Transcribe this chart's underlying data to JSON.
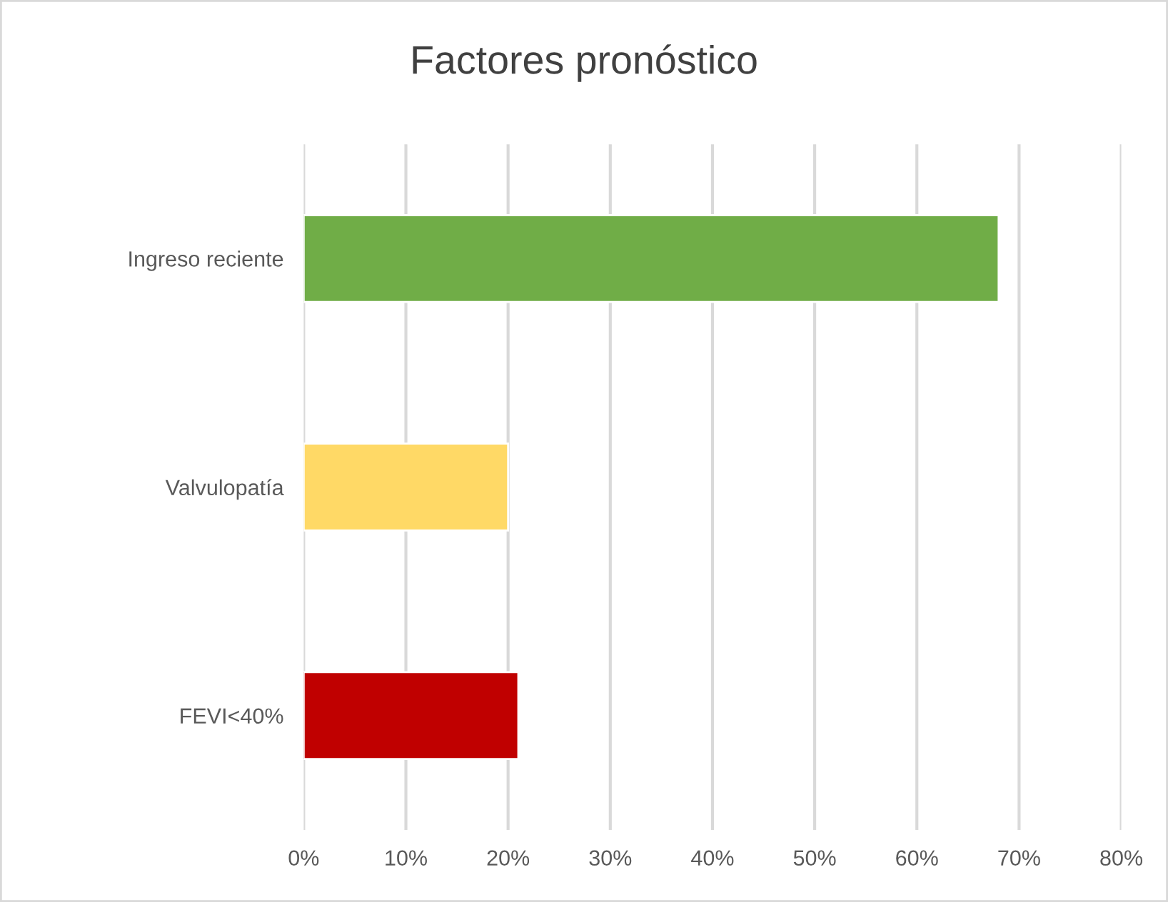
{
  "chart_data": {
    "type": "bar",
    "orientation": "horizontal",
    "title": "Factores pronóstico",
    "categories": [
      "Ingreso reciente",
      "Valvulopatía",
      "FEVI<40%"
    ],
    "values": [
      68,
      20,
      21
    ],
    "colors": [
      "#70ad47",
      "#ffd966",
      "#c00000"
    ],
    "xlim": [
      0,
      80
    ],
    "xticks": [
      {
        "value": 0,
        "label": "0%"
      },
      {
        "value": 10,
        "label": "10%"
      },
      {
        "value": 20,
        "label": "20%"
      },
      {
        "value": 30,
        "label": "30%"
      },
      {
        "value": 40,
        "label": "40%"
      },
      {
        "value": 50,
        "label": "50%"
      },
      {
        "value": 60,
        "label": "60%"
      },
      {
        "value": 70,
        "label": "70%"
      },
      {
        "value": 80,
        "label": "80%"
      }
    ],
    "grid": "x"
  }
}
